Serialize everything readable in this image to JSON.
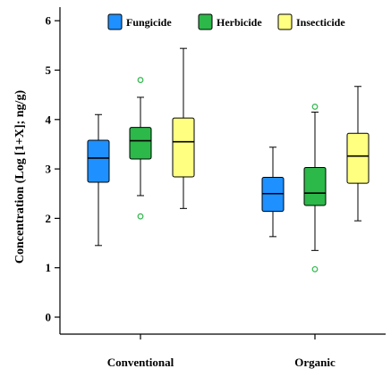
{
  "chart_data": {
    "type": "boxplot",
    "ylabel": "Concentration (Log [1+X]; ng/g)",
    "xlabel": "",
    "ylim": [
      -0.35,
      6.3
    ],
    "yticks": [
      0,
      1,
      2,
      3,
      4,
      5,
      6
    ],
    "grid": false,
    "legend_position": "top",
    "categories": [
      "Conventional",
      "Organic"
    ],
    "series": [
      {
        "name": "Fungicide",
        "color": "#1e90ff",
        "boxes": [
          {
            "whisker_low": 1.45,
            "q1": 2.73,
            "median": 3.22,
            "q3": 3.58,
            "whisker_high": 4.1,
            "outliers": []
          },
          {
            "whisker_low": 1.63,
            "q1": 2.14,
            "median": 2.5,
            "q3": 2.83,
            "whisker_high": 3.44,
            "outliers": []
          }
        ]
      },
      {
        "name": "Herbicide",
        "color": "#2db84a",
        "boxes": [
          {
            "whisker_low": 2.46,
            "q1": 3.2,
            "median": 3.57,
            "q3": 3.84,
            "whisker_high": 4.45,
            "outliers": [
              4.8,
              2.04
            ]
          },
          {
            "whisker_low": 1.35,
            "q1": 2.26,
            "median": 2.51,
            "q3": 3.03,
            "whisker_high": 4.15,
            "outliers": [
              4.26,
              0.97
            ]
          }
        ]
      },
      {
        "name": "Insecticide",
        "color": "#ffff80",
        "boxes": [
          {
            "whisker_low": 2.2,
            "q1": 2.84,
            "median": 3.55,
            "q3": 4.03,
            "whisker_high": 5.44,
            "outliers": []
          },
          {
            "whisker_low": 1.95,
            "q1": 2.71,
            "median": 3.26,
            "q3": 3.72,
            "whisker_high": 4.67,
            "outliers": []
          }
        ]
      }
    ]
  }
}
